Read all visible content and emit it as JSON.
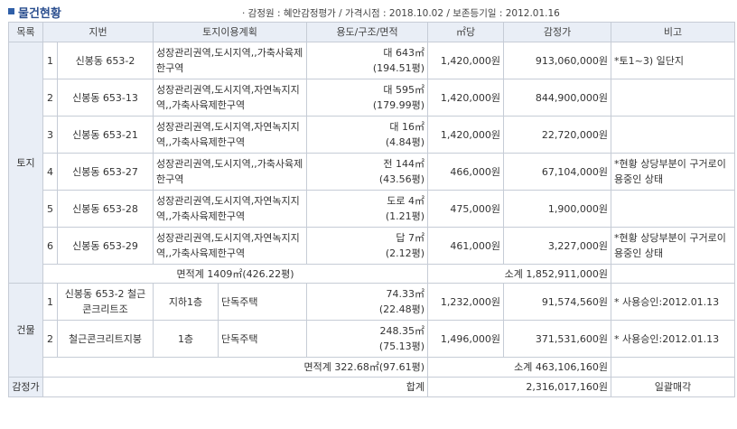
{
  "title": "물건현황",
  "meta": "· 감정원 : 혜안감정평가 / 가격시점 : 2018.10.02 / 보존등기일 : 2012.01.16",
  "headers": [
    "목록",
    "지번",
    "토지이용계획",
    "용도/구조/면적",
    "㎡당",
    "감정가",
    "비고"
  ],
  "land": {
    "label": "토지",
    "rows": [
      {
        "no": "1",
        "lot": "신봉동 653-2",
        "zoning": "성장관리권역,도시지역,,가축사육제한구역",
        "use": "대 643㎡",
        "area": "(194.51평)",
        "per_m2": "1,420,000원",
        "appraised": "913,060,000원",
        "note": "*토1~3) 일단지"
      },
      {
        "no": "2",
        "lot": "신봉동 653-13",
        "zoning": "성장관리권역,도시지역,자연녹지지역,,가축사육제한구역",
        "use": "대 595㎡",
        "area": "(179.99평)",
        "per_m2": "1,420,000원",
        "appraised": "844,900,000원",
        "note": ""
      },
      {
        "no": "3",
        "lot": "신봉동 653-21",
        "zoning": "성장관리권역,도시지역,자연녹지지역,,가축사육제한구역",
        "use": "대 16㎡",
        "area": "(4.84평)",
        "per_m2": "1,420,000원",
        "appraised": "22,720,000원",
        "note": ""
      },
      {
        "no": "4",
        "lot": "신봉동 653-27",
        "zoning": "성장관리권역,도시지역,,가축사육제한구역",
        "use": "전 144㎡",
        "area": "(43.56평)",
        "per_m2": "466,000원",
        "appraised": "67,104,000원",
        "note": "*현황 상당부분이 구거로이용중인 상태"
      },
      {
        "no": "5",
        "lot": "신봉동 653-28",
        "zoning": "성장관리권역,도시지역,자연녹지지역,,가축사육제한구역",
        "use": "도로 4㎡",
        "area": "(1.21평)",
        "per_m2": "475,000원",
        "appraised": "1,900,000원",
        "note": ""
      },
      {
        "no": "6",
        "lot": "신봉동 653-29",
        "zoning": "성장관리권역,도시지역,자연녹지지역,,가축사육제한구역",
        "use": "답 7㎡",
        "area": "(2.12평)",
        "per_m2": "461,000원",
        "appraised": "3,227,000원",
        "note": "*현황 상당부분이 구거로이용중인 상태"
      }
    ],
    "area_total": "면적계 1409㎡(426.22평)",
    "subtotal": "소계 1,852,911,000원"
  },
  "building": {
    "label": "건물",
    "rows": [
      {
        "no": "1",
        "lot": "신봉동 653-2 철근콘크리트조",
        "floor": "지하1층",
        "use": "단독주택",
        "area_m2": "74.33㎡",
        "area_py": "(22.48평)",
        "per_m2": "1,232,000원",
        "appraised": "91,574,560원",
        "note": "* 사용승인:2012.01.13"
      },
      {
        "no": "2",
        "lot": "철근콘크리트지붕",
        "floor": "1층",
        "use": "단독주택",
        "area_m2": "248.35㎡",
        "area_py": "(75.13평)",
        "per_m2": "1,496,000원",
        "appraised": "371,531,600원",
        "note": "* 사용승인:2012.01.13"
      }
    ],
    "area_total": "면적계 322.68㎡(97.61평)",
    "subtotal": "소계 463,106,160원"
  },
  "total": {
    "label": "감정가",
    "sum_label": "합계",
    "sum_value": "2,316,017,160원",
    "note": "일괄매각"
  }
}
